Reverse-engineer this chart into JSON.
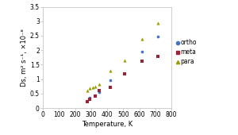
{
  "ortho_T": [
    275,
    290,
    325,
    350,
    420,
    615,
    715
  ],
  "ortho_Ds": [
    0.25,
    0.35,
    0.45,
    0.55,
    0.95,
    1.95,
    2.48
  ],
  "meta_T": [
    275,
    290,
    325,
    350,
    420,
    510,
    615,
    715
  ],
  "meta_Ds": [
    0.22,
    0.3,
    0.4,
    0.6,
    0.72,
    1.18,
    1.62,
    1.78
  ],
  "para_T": [
    275,
    290,
    310,
    325,
    350,
    420,
    510,
    615,
    715
  ],
  "para_Ds": [
    0.6,
    0.68,
    0.72,
    0.75,
    0.82,
    1.3,
    1.65,
    2.4,
    2.93
  ],
  "ortho_color": "#4472c4",
  "meta_color": "#9b2335",
  "para_color": "#9c9c00",
  "xlabel": "Temperature, K",
  "ylabel": "Ds, m² s⁻¹, ×10⁻⁸",
  "xlim": [
    0,
    800
  ],
  "ylim": [
    0,
    3.5
  ],
  "xticks": [
    0,
    100,
    200,
    300,
    400,
    500,
    600,
    700,
    800
  ],
  "yticks": [
    0,
    0.5,
    1.0,
    1.5,
    2.0,
    2.5,
    3.0,
    3.5
  ],
  "ytick_labels": [
    "0",
    "0.5",
    "1",
    "1.5",
    "2",
    "2.5",
    "3",
    "3.5"
  ],
  "legend_labels": [
    "ortho",
    "meta",
    "para"
  ],
  "axis_fontsize": 6,
  "tick_fontsize": 5.5,
  "legend_fontsize": 5.5
}
